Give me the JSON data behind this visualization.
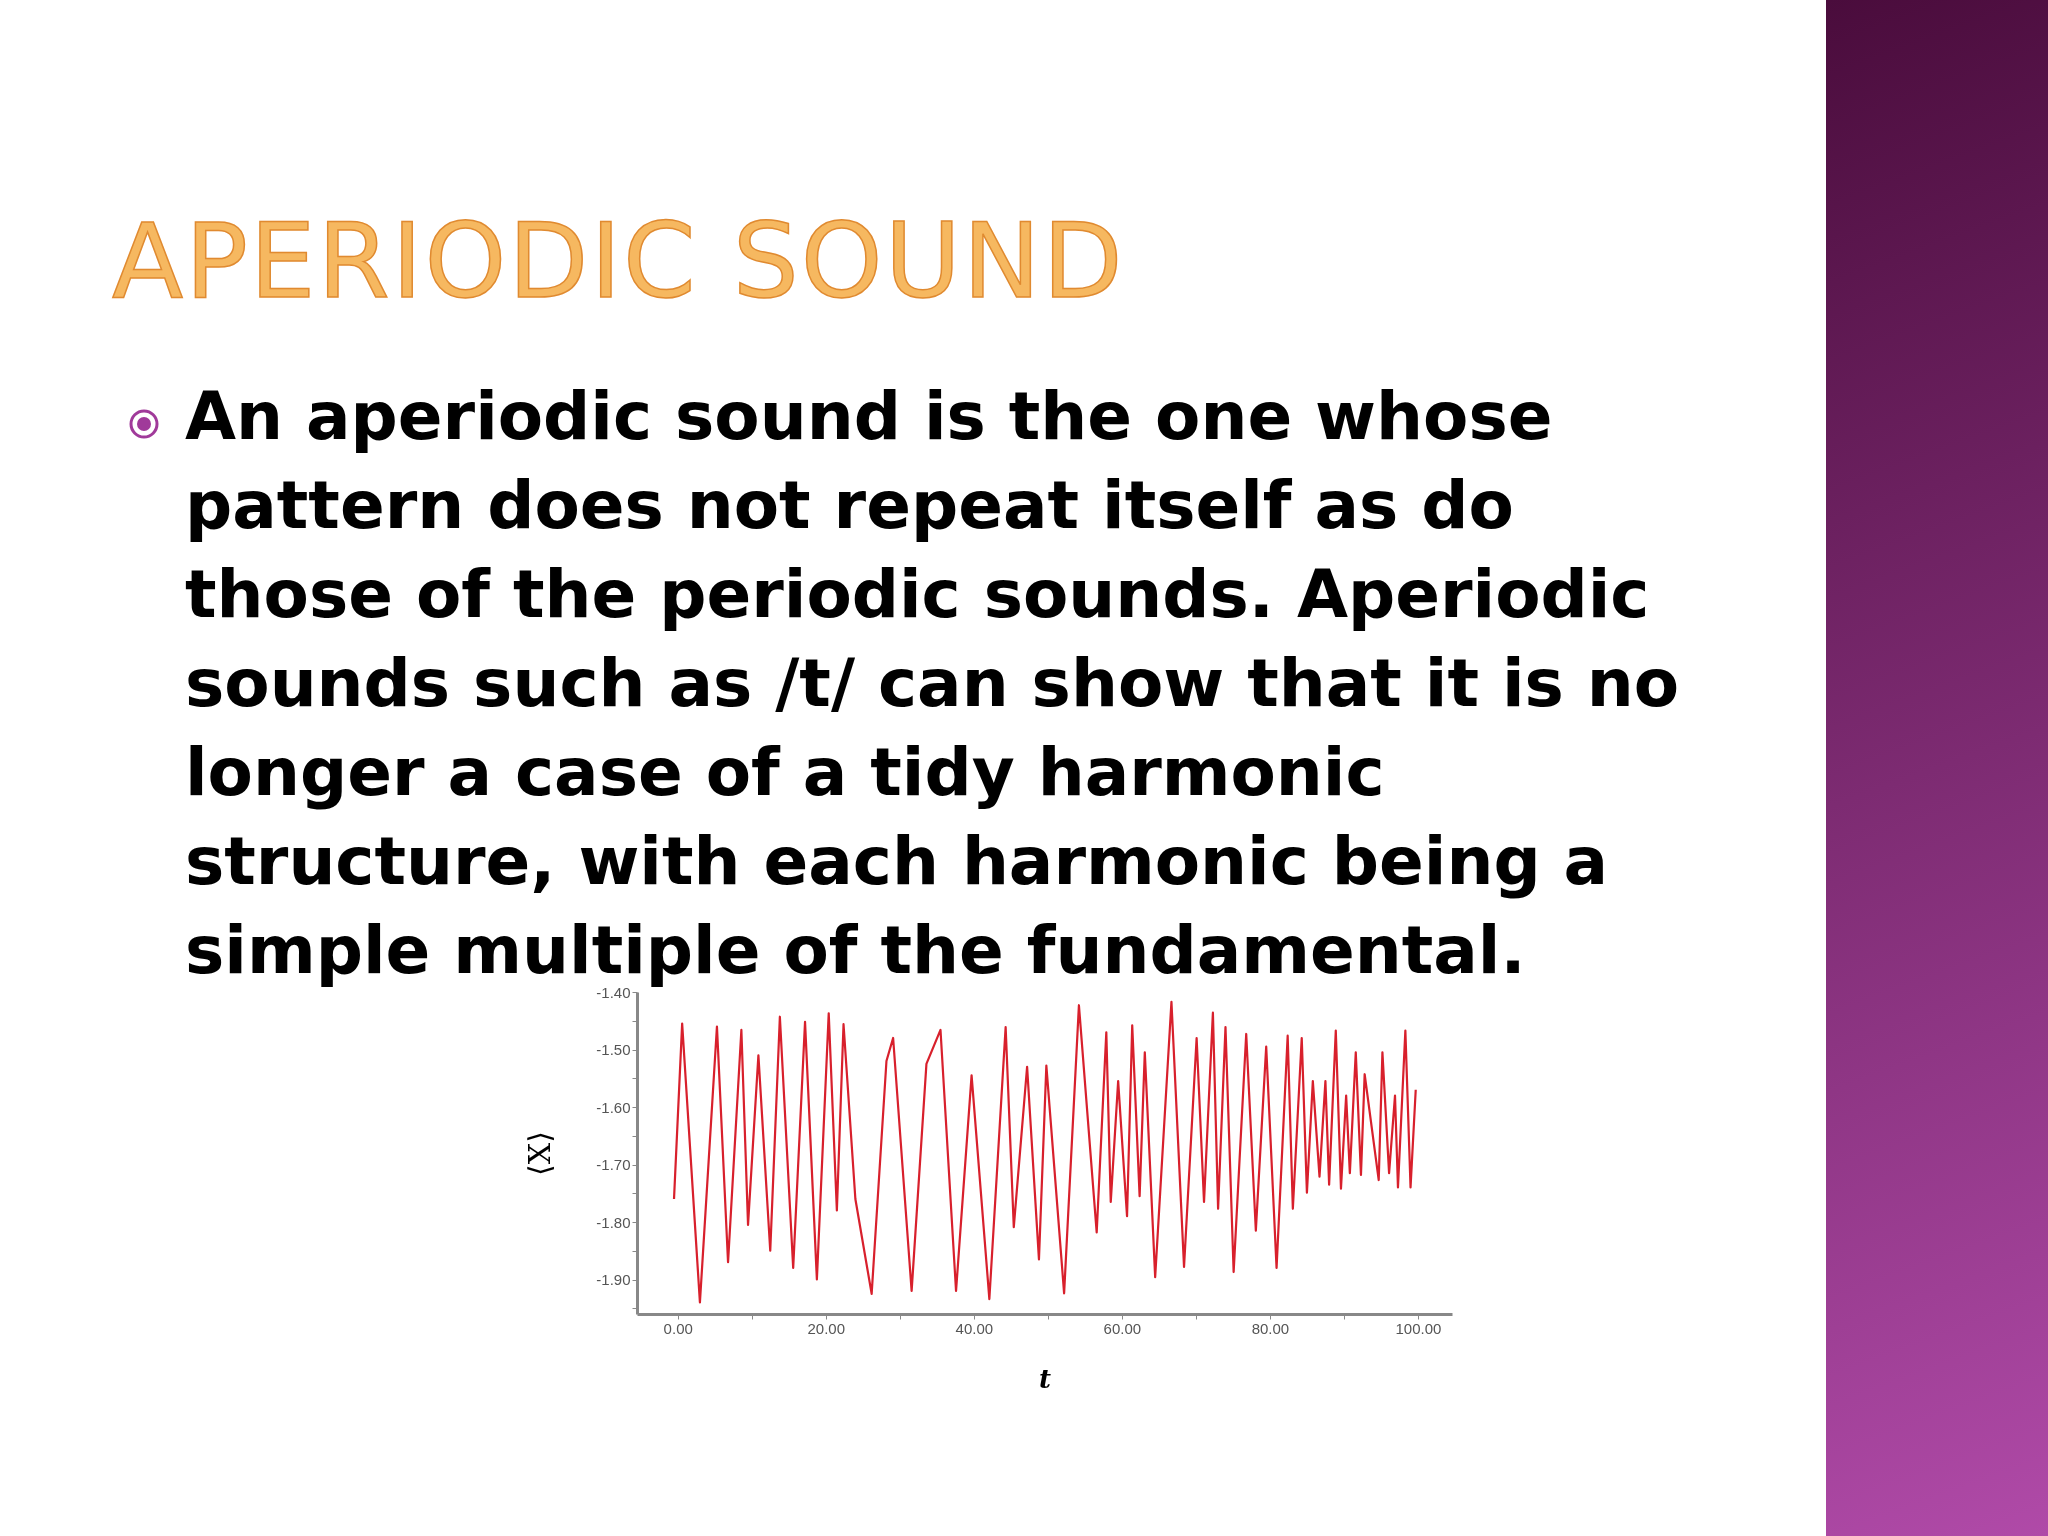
{
  "chart_data": {
    "type": "line",
    "title": "APERIODIC SOUND",
    "annotations": [
      "An  aperiodic sound is the one  whose pattern does not repeat itself as do those of the periodic sounds. Aperiodic sounds such as /t/ can show that it is no longer a case of a tidy harmonic structure, with each harmonic being a simple multiple of the fundamental."
    ],
    "xlabel": "t",
    "ylabel": "⟨X⟩",
    "series": [
      {
        "color": "#d8202c",
        "x": [
          -0.5,
          0.6,
          3.0,
          5.3,
          6.8,
          8.6,
          9.5,
          10.9,
          12.5,
          13.8,
          15.6,
          17.2,
          18.8,
          20.4,
          21.5,
          22.4,
          24.0,
          26.2,
          28.2,
          29.1,
          31.6,
          33.6,
          35.5,
          37.6,
          39.7,
          42.1,
          44.3,
          45.4,
          47.2,
          48.8,
          49.8,
          52.2,
          54.2,
          56.6,
          57.9,
          58.5,
          59.5,
          60.7,
          61.4,
          62.4,
          63.1,
          64.5,
          66.7,
          68.4,
          70.1,
          71.1,
          72.3,
          73.0,
          74.0,
          75.1,
          76.8,
          78.1,
          79.5,
          80.9,
          82.4,
          83.1,
          84.3,
          85.0,
          85.8,
          86.7,
          87.5,
          88.0,
          88.9,
          89.6,
          90.3,
          90.8,
          91.6,
          92.3,
          92.8,
          94.7,
          95.2,
          96.1,
          96.9,
          97.3,
          98.3,
          99.0,
          99.7
        ],
        "values": [
          -1.76,
          -1.455,
          -1.94,
          -1.46,
          -1.87,
          -1.466,
          -1.805,
          -1.51,
          -1.85,
          -1.443,
          -1.88,
          -1.452,
          -1.9,
          -1.437,
          -1.78,
          -1.456,
          -1.76,
          -1.925,
          -1.52,
          -1.48,
          -1.92,
          -1.525,
          -1.466,
          -1.92,
          -1.545,
          -1.934,
          -1.461,
          -1.809,
          -1.53,
          -1.865,
          -1.528,
          -1.924,
          -1.423,
          -1.818,
          -1.47,
          -1.765,
          -1.555,
          -1.79,
          -1.458,
          -1.755,
          -1.505,
          -1.896,
          -1.417,
          -1.878,
          -1.48,
          -1.765,
          -1.436,
          -1.777,
          -1.461,
          -1.887,
          -1.473,
          -1.815,
          -1.495,
          -1.88,
          -1.476,
          -1.777,
          -1.48,
          -1.749,
          -1.555,
          -1.721,
          -1.555,
          -1.735,
          -1.467,
          -1.742,
          -1.58,
          -1.715,
          -1.505,
          -1.718,
          -1.543,
          -1.727,
          -1.505,
          -1.715,
          -1.58,
          -1.74,
          -1.467,
          -1.74,
          -1.57
        ]
      }
    ],
    "xlim": [
      -5.5,
      104.6
    ],
    "xticks": [
      {
        "value": 0,
        "label": "0.00"
      },
      {
        "value": 10,
        "label": null
      },
      {
        "value": 20,
        "label": "20.00"
      },
      {
        "value": 30,
        "label": null
      },
      {
        "value": 40,
        "label": "40.00"
      },
      {
        "value": 50,
        "label": null
      },
      {
        "value": 60,
        "label": "60.00"
      },
      {
        "value": 70,
        "label": null
      },
      {
        "value": 80,
        "label": "80.00"
      },
      {
        "value": 90,
        "label": null
      },
      {
        "value": 100,
        "label": "100.00"
      }
    ],
    "ylim": [
      -1.96,
      -1.4
    ],
    "yticks": [
      {
        "value": -1.4,
        "label": "-1.40"
      },
      {
        "value": -1.45,
        "label": null
      },
      {
        "value": -1.5,
        "label": "-1.50"
      },
      {
        "value": -1.55,
        "label": null
      },
      {
        "value": -1.6,
        "label": "-1.60"
      },
      {
        "value": -1.65,
        "label": null
      },
      {
        "value": -1.7,
        "label": "-1.70"
      },
      {
        "value": -1.75,
        "label": null
      },
      {
        "value": -1.8,
        "label": "-1.80"
      },
      {
        "value": -1.85,
        "label": null
      },
      {
        "value": -1.9,
        "label": "-1.90"
      },
      {
        "value": -1.95,
        "label": null
      }
    ],
    "grid": false,
    "marker": "none",
    "line_style": "solid"
  }
}
